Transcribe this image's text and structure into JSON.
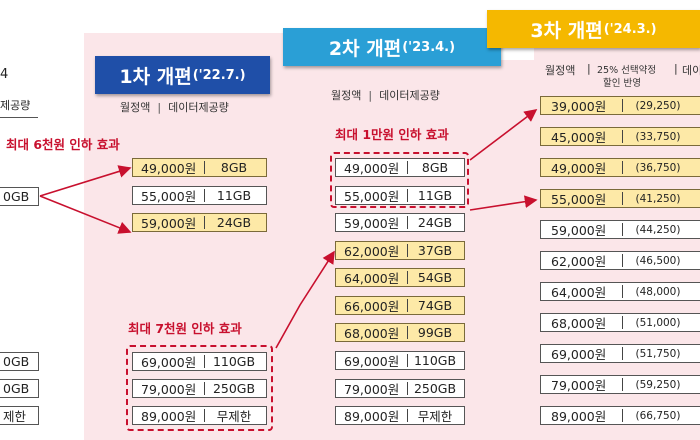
{
  "left": {
    "header_suffix": "4",
    "col_label": "제공량",
    "boxes": [
      "0GB",
      "0GB",
      "0GB",
      "제한"
    ]
  },
  "phase1": {
    "title_main": "1차 개편",
    "title_date": "('22.7.)",
    "hdr_price": "월정액",
    "hdr_data": "데이터제공량",
    "note_top": "최대 6천원 인하 효과",
    "note_bottom": "최대 7천원 인하 효과",
    "color": "#1f4fa8",
    "plans": [
      {
        "price": "49,000원",
        "data": "8GB",
        "highlight": true
      },
      {
        "price": "55,000원",
        "data": "11GB",
        "highlight": false
      },
      {
        "price": "59,000원",
        "data": "24GB",
        "highlight": true
      },
      {
        "price": "69,000원",
        "data": "110GB",
        "highlight": false
      },
      {
        "price": "79,000원",
        "data": "250GB",
        "highlight": false
      },
      {
        "price": "89,000원",
        "data": "무제한",
        "highlight": false
      }
    ]
  },
  "phase2": {
    "title_main": "2차 개편",
    "title_date": "('23.4.)",
    "hdr_price": "월정액",
    "hdr_data": "데이터제공량",
    "note": "최대 1만원 인하 효과",
    "color": "#2a9fd6",
    "plans": [
      {
        "price": "49,000원",
        "data": "8GB",
        "highlight": false
      },
      {
        "price": "55,000원",
        "data": "11GB",
        "highlight": false
      },
      {
        "price": "59,000원",
        "data": "24GB",
        "highlight": false
      },
      {
        "price": "62,000원",
        "data": "37GB",
        "highlight": true
      },
      {
        "price": "64,000원",
        "data": "54GB",
        "highlight": true
      },
      {
        "price": "66,000원",
        "data": "74GB",
        "highlight": true
      },
      {
        "price": "68,000원",
        "data": "99GB",
        "highlight": true
      },
      {
        "price": "69,000원",
        "data": "110GB",
        "highlight": false
      },
      {
        "price": "79,000원",
        "data": "250GB",
        "highlight": false
      },
      {
        "price": "89,000원",
        "data": "무제한",
        "highlight": false
      }
    ]
  },
  "phase3": {
    "title_main": "3차 개편",
    "title_date": "('24.3.)",
    "hdr_price": "월정액",
    "hdr_disc_1": "25% 선택약정",
    "hdr_disc_2": "할인 반영",
    "hdr_data": "데이",
    "color": "#f5b800",
    "plans": [
      {
        "price": "39,000원",
        "disc": "(29,250)",
        "highlight": true
      },
      {
        "price": "45,000원",
        "disc": "(33,750)",
        "highlight": true
      },
      {
        "price": "49,000원",
        "disc": "(36,750)",
        "highlight": true
      },
      {
        "price": "55,000원",
        "disc": "(41,250)",
        "highlight": true
      },
      {
        "price": "59,000원",
        "disc": "(44,250)",
        "highlight": false
      },
      {
        "price": "62,000원",
        "disc": "(46,500)",
        "highlight": false
      },
      {
        "price": "64,000원",
        "disc": "(48,000)",
        "highlight": false
      },
      {
        "price": "68,000원",
        "disc": "(51,000)",
        "highlight": false
      },
      {
        "price": "69,000원",
        "disc": "(51,750)",
        "highlight": false
      },
      {
        "price": "79,000원",
        "disc": "(59,250)",
        "highlight": false
      },
      {
        "price": "89,000원",
        "disc": "(66,750)",
        "highlight": false
      }
    ]
  }
}
